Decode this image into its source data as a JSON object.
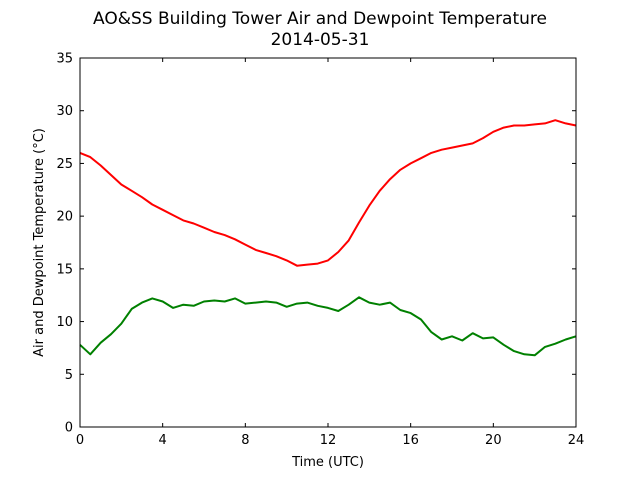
{
  "chart_data": {
    "type": "line",
    "title": "AO&SS Building Tower Air and Dewpoint Temperature",
    "subtitle": "2014-05-31",
    "xlabel": "Time (UTC)",
    "ylabel": "Air and Dewpoint Temperature (°C)",
    "xlim": [
      0,
      24
    ],
    "ylim": [
      0,
      35
    ],
    "x_ticks": [
      0,
      4,
      8,
      12,
      16,
      20,
      24
    ],
    "y_ticks": [
      0,
      5,
      10,
      15,
      20,
      25,
      30,
      35
    ],
    "grid": false,
    "legend": "none",
    "series": [
      {
        "color": "#ff0000",
        "points": [
          [
            0,
            26.0
          ],
          [
            0.5,
            25.6
          ],
          [
            1.0,
            24.8
          ],
          [
            1.5,
            23.9
          ],
          [
            2.0,
            23.0
          ],
          [
            2.5,
            22.4
          ],
          [
            3.0,
            21.8
          ],
          [
            3.5,
            21.1
          ],
          [
            4.0,
            20.6
          ],
          [
            4.5,
            20.1
          ],
          [
            5.0,
            19.6
          ],
          [
            5.5,
            19.3
          ],
          [
            6.0,
            18.9
          ],
          [
            6.5,
            18.5
          ],
          [
            7.0,
            18.2
          ],
          [
            7.5,
            17.8
          ],
          [
            8.0,
            17.3
          ],
          [
            8.5,
            16.8
          ],
          [
            9.0,
            16.5
          ],
          [
            9.5,
            16.2
          ],
          [
            10.0,
            15.8
          ],
          [
            10.5,
            15.3
          ],
          [
            11.0,
            15.4
          ],
          [
            11.5,
            15.5
          ],
          [
            12.0,
            15.8
          ],
          [
            12.5,
            16.6
          ],
          [
            13.0,
            17.7
          ],
          [
            13.5,
            19.4
          ],
          [
            14.0,
            21.0
          ],
          [
            14.5,
            22.4
          ],
          [
            15.0,
            23.5
          ],
          [
            15.5,
            24.4
          ],
          [
            16.0,
            25.0
          ],
          [
            16.5,
            25.5
          ],
          [
            17.0,
            26.0
          ],
          [
            17.5,
            26.3
          ],
          [
            18.0,
            26.5
          ],
          [
            18.5,
            26.7
          ],
          [
            19.0,
            26.9
          ],
          [
            19.5,
            27.4
          ],
          [
            20.0,
            28.0
          ],
          [
            20.5,
            28.4
          ],
          [
            21.0,
            28.6
          ],
          [
            21.5,
            28.6
          ],
          [
            22.0,
            28.7
          ],
          [
            22.5,
            28.8
          ],
          [
            23.0,
            29.1
          ],
          [
            23.5,
            28.8
          ],
          [
            24.0,
            28.6
          ]
        ]
      },
      {
        "color": "#008000",
        "points": [
          [
            0,
            7.8
          ],
          [
            0.5,
            6.9
          ],
          [
            1.0,
            8.0
          ],
          [
            1.5,
            8.8
          ],
          [
            2.0,
            9.8
          ],
          [
            2.5,
            11.2
          ],
          [
            3.0,
            11.8
          ],
          [
            3.5,
            12.2
          ],
          [
            4.0,
            11.9
          ],
          [
            4.5,
            11.3
          ],
          [
            5.0,
            11.6
          ],
          [
            5.5,
            11.5
          ],
          [
            6.0,
            11.9
          ],
          [
            6.5,
            12.0
          ],
          [
            7.0,
            11.9
          ],
          [
            7.5,
            12.2
          ],
          [
            8.0,
            11.7
          ],
          [
            8.5,
            11.8
          ],
          [
            9.0,
            11.9
          ],
          [
            9.5,
            11.8
          ],
          [
            10.0,
            11.4
          ],
          [
            10.5,
            11.7
          ],
          [
            11.0,
            11.8
          ],
          [
            11.5,
            11.5
          ],
          [
            12.0,
            11.3
          ],
          [
            12.5,
            11.0
          ],
          [
            13.0,
            11.6
          ],
          [
            13.5,
            12.3
          ],
          [
            14.0,
            11.8
          ],
          [
            14.5,
            11.6
          ],
          [
            15.0,
            11.8
          ],
          [
            15.5,
            11.1
          ],
          [
            16.0,
            10.8
          ],
          [
            16.5,
            10.2
          ],
          [
            17.0,
            9.0
          ],
          [
            17.5,
            8.3
          ],
          [
            18.0,
            8.6
          ],
          [
            18.5,
            8.2
          ],
          [
            19.0,
            8.9
          ],
          [
            19.5,
            8.4
          ],
          [
            20.0,
            8.5
          ],
          [
            20.5,
            7.8
          ],
          [
            21.0,
            7.2
          ],
          [
            21.5,
            6.9
          ],
          [
            22.0,
            6.8
          ],
          [
            22.5,
            7.6
          ],
          [
            23.0,
            7.9
          ],
          [
            23.5,
            8.3
          ],
          [
            24.0,
            8.6
          ]
        ]
      }
    ]
  }
}
